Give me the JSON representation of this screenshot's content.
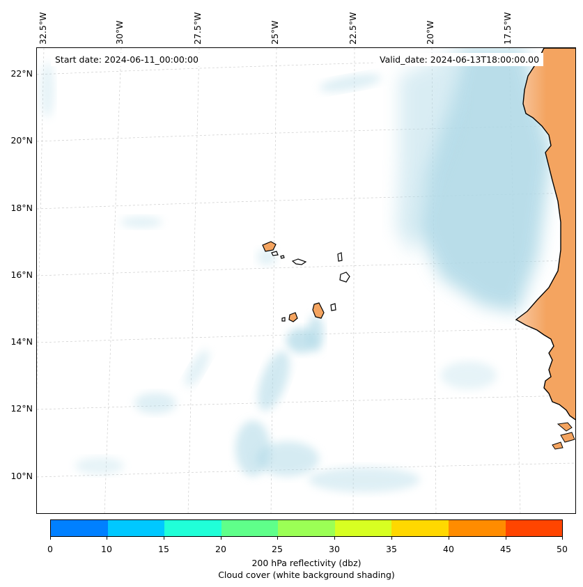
{
  "map": {
    "start_date": "Start date: 2024-06-11_00:00:00",
    "valid_date": "Valid_date: 2024-06-13T18:00:00.00",
    "longitude_labels": [
      "32.5°W",
      "30°W",
      "27.5°W",
      "25°W",
      "22.5°W",
      "20°W",
      "17.5°W"
    ],
    "latitude_labels": [
      "22°N",
      "20°N",
      "18°N",
      "16°N",
      "14°N",
      "12°N",
      "10°N"
    ],
    "gridlines": true,
    "land_color": "#f4a460",
    "cloud_color": "#add8e6",
    "coastline_color": "#000000"
  },
  "colorbar": {
    "ticks": [
      "0",
      "10",
      "15",
      "20",
      "25",
      "30",
      "35",
      "40",
      "45",
      "50"
    ],
    "colors": [
      "#0080ff",
      "#00c8ff",
      "#20ffd8",
      "#5fff8a",
      "#9bff55",
      "#d7ff22",
      "#ffd800",
      "#ff8c00",
      "#ff4500"
    ],
    "label_line1": "200 hPa reflectivity (dbz)",
    "label_line2": "Cloud cover (white background shading)"
  }
}
